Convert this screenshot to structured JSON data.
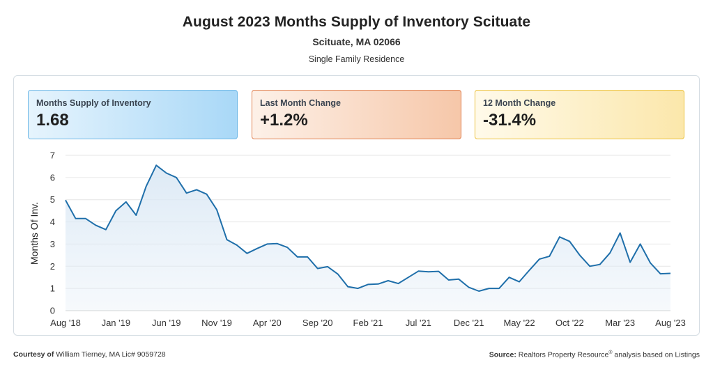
{
  "header": {
    "title": "August 2023 Months Supply of Inventory Scituate",
    "subtitle": "Scituate, MA 02066",
    "caption": "Single Family Residence"
  },
  "cards": [
    {
      "label": "Months Supply of Inventory",
      "value": "1.68",
      "color": "#a9d8f7"
    },
    {
      "label": "Last Month Change",
      "value": "+1.2%",
      "color": "#f6c7a9"
    },
    {
      "label": "12 Month Change",
      "value": "-31.4%",
      "color": "#fbe7ab"
    }
  ],
  "footer": {
    "courtesy_label": "Courtesy of",
    "courtesy_text": "William Tierney, MA Lic# 9059728",
    "source_label": "Source:",
    "source_text": "Realtors Property Resource",
    "source_mark": "®",
    "source_suffix": "analysis based on Listings"
  },
  "chart_data": {
    "type": "area",
    "ylabel": "Months Of Inv.",
    "ylim": [
      0,
      7
    ],
    "yticks": [
      0,
      1,
      2,
      3,
      4,
      5,
      6,
      7
    ],
    "grid": true,
    "line_color": "#1f6faa",
    "fill_color": "#dce9f5",
    "x": [
      "Aug '18",
      "Sep '18",
      "Oct '18",
      "Nov '18",
      "Dec '18",
      "Jan '19",
      "Feb '19",
      "Mar '19",
      "Apr '19",
      "May '19",
      "Jun '19",
      "Jul '19",
      "Aug '19",
      "Sep '19",
      "Oct '19",
      "Nov '19",
      "Dec '19",
      "Jan '20",
      "Feb '20",
      "Mar '20",
      "Apr '20",
      "May '20",
      "Jun '20",
      "Jul '20",
      "Aug '20",
      "Sep '20",
      "Oct '20",
      "Nov '20",
      "Dec '20",
      "Jan '21",
      "Feb '21",
      "Mar '21",
      "Apr '21",
      "May '21",
      "Jun '21",
      "Jul '21",
      "Aug '21",
      "Sep '21",
      "Oct '21",
      "Nov '21",
      "Dec '21",
      "Jan '22",
      "Feb '22",
      "Mar '22",
      "Apr '22",
      "May '22",
      "Jun '22",
      "Jul '22",
      "Aug '22",
      "Sep '22",
      "Oct '22",
      "Nov '22",
      "Dec '22",
      "Jan '23",
      "Feb '23",
      "Mar '23",
      "Apr '23",
      "May '23",
      "Jun '23",
      "Jul '23",
      "Aug '23"
    ],
    "values": [
      4.98,
      4.15,
      4.15,
      3.85,
      3.65,
      4.5,
      4.9,
      4.3,
      5.6,
      6.55,
      6.2,
      6.0,
      5.3,
      5.45,
      5.25,
      4.55,
      3.2,
      2.95,
      2.58,
      2.8,
      3.0,
      3.02,
      2.85,
      2.42,
      2.42,
      1.9,
      1.98,
      1.65,
      1.08,
      1.0,
      1.18,
      1.2,
      1.35,
      1.22,
      1.5,
      1.78,
      1.75,
      1.77,
      1.38,
      1.42,
      1.05,
      0.88,
      1.0,
      1.0,
      1.5,
      1.3,
      1.82,
      2.32,
      2.45,
      3.32,
      3.12,
      2.5,
      2.0,
      2.08,
      2.6,
      3.5,
      2.18,
      3.0,
      2.15,
      1.66,
      1.68
    ],
    "xtick_labels": [
      "Aug '18",
      "Jan '19",
      "Jun '19",
      "Nov '19",
      "Apr '20",
      "Sep '20",
      "Feb '21",
      "Jul '21",
      "Dec '21",
      "May '22",
      "Oct '22",
      "Mar '23",
      "Aug '23"
    ],
    "xtick_indices": [
      0,
      5,
      10,
      15,
      20,
      25,
      30,
      35,
      40,
      45,
      50,
      55,
      60
    ]
  }
}
